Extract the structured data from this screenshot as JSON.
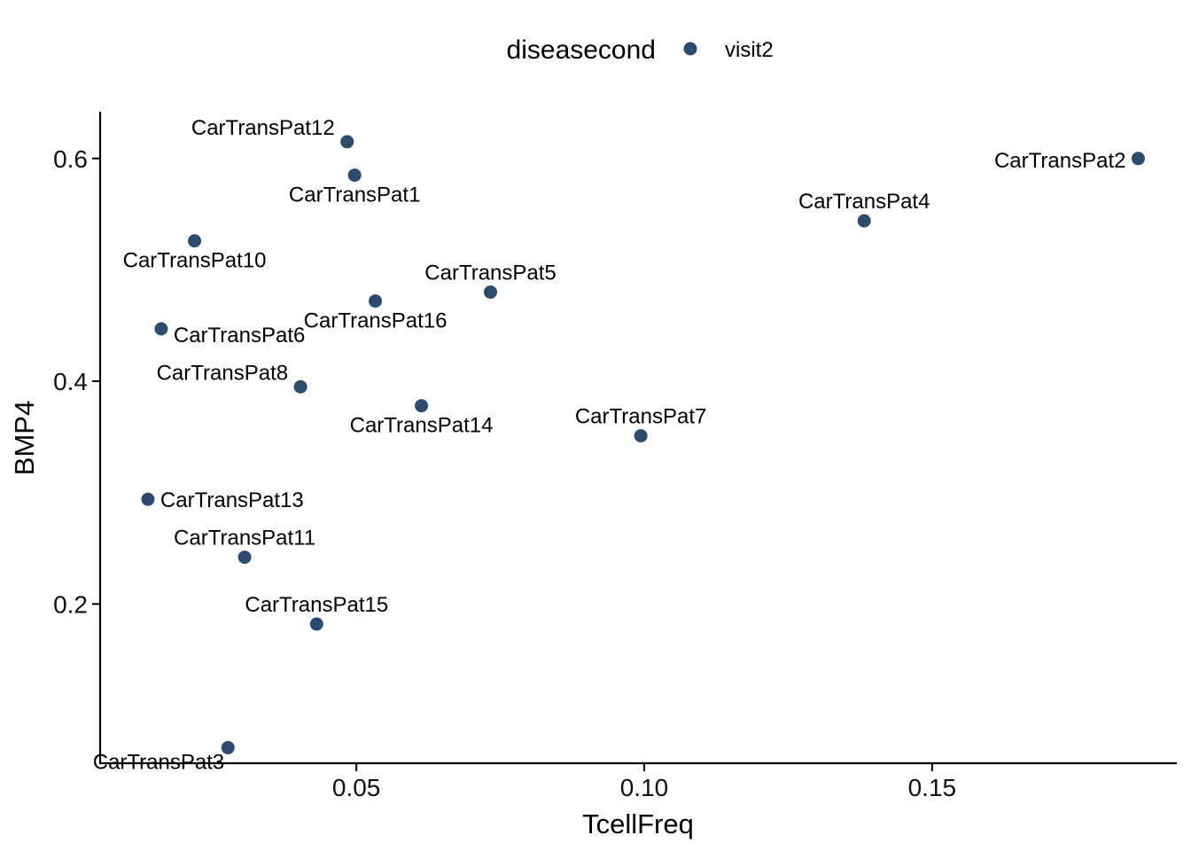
{
  "chart_data": {
    "type": "scatter",
    "xlabel": "TcellFreq",
    "ylabel": "BMP4",
    "xlim": [
      0.0055,
      0.1925
    ],
    "ylim": [
      0.057,
      0.642
    ],
    "xticks": [
      0.05,
      0.1,
      0.15
    ],
    "xtick_labels": [
      "0.05",
      "0.10",
      "0.15"
    ],
    "yticks": [
      0.2,
      0.4,
      0.6
    ],
    "ytick_labels": [
      "0.2",
      "0.4",
      "0.6"
    ],
    "grid": false,
    "legend": {
      "placement": "top",
      "title": "diseasecond",
      "entries": [
        {
          "label": "visit2",
          "color": "#2b4c6f"
        }
      ]
    },
    "series": [
      {
        "name": "visit2",
        "color": "#2b4c6f",
        "points": [
          {
            "label": "CarTransPat1",
            "x": 0.0497,
            "y": 0.585,
            "label_pos": "below"
          },
          {
            "label": "CarTransPat2",
            "x": 0.1858,
            "y": 0.6,
            "label_pos": "left"
          },
          {
            "label": "CarTransPat3",
            "x": 0.0277,
            "y": 0.071,
            "label_pos": "below-left"
          },
          {
            "label": "CarTransPat4",
            "x": 0.1382,
            "y": 0.544,
            "label_pos": "above"
          },
          {
            "label": "CarTransPat5",
            "x": 0.0733,
            "y": 0.48,
            "label_pos": "above"
          },
          {
            "label": "CarTransPat6",
            "x": 0.0161,
            "y": 0.447,
            "label_pos": "below-right"
          },
          {
            "label": "CarTransPat7",
            "x": 0.0994,
            "y": 0.351,
            "label_pos": "above"
          },
          {
            "label": "CarTransPat8",
            "x": 0.0403,
            "y": 0.395,
            "label_pos": "above-left"
          },
          {
            "label": "CarTransPat10",
            "x": 0.0219,
            "y": 0.526,
            "label_pos": "below"
          },
          {
            "label": "CarTransPat11",
            "x": 0.0306,
            "y": 0.242,
            "label_pos": "above"
          },
          {
            "label": "CarTransPat12",
            "x": 0.0484,
            "y": 0.615,
            "label_pos": "above-left"
          },
          {
            "label": "CarTransPat13",
            "x": 0.0138,
            "y": 0.294,
            "label_pos": "right"
          },
          {
            "label": "CarTransPat14",
            "x": 0.0613,
            "y": 0.378,
            "label_pos": "below"
          },
          {
            "label": "CarTransPat15",
            "x": 0.0431,
            "y": 0.182,
            "label_pos": "above"
          },
          {
            "label": "CarTransPat16",
            "x": 0.0533,
            "y": 0.472,
            "label_pos": "below"
          }
        ]
      }
    ]
  }
}
